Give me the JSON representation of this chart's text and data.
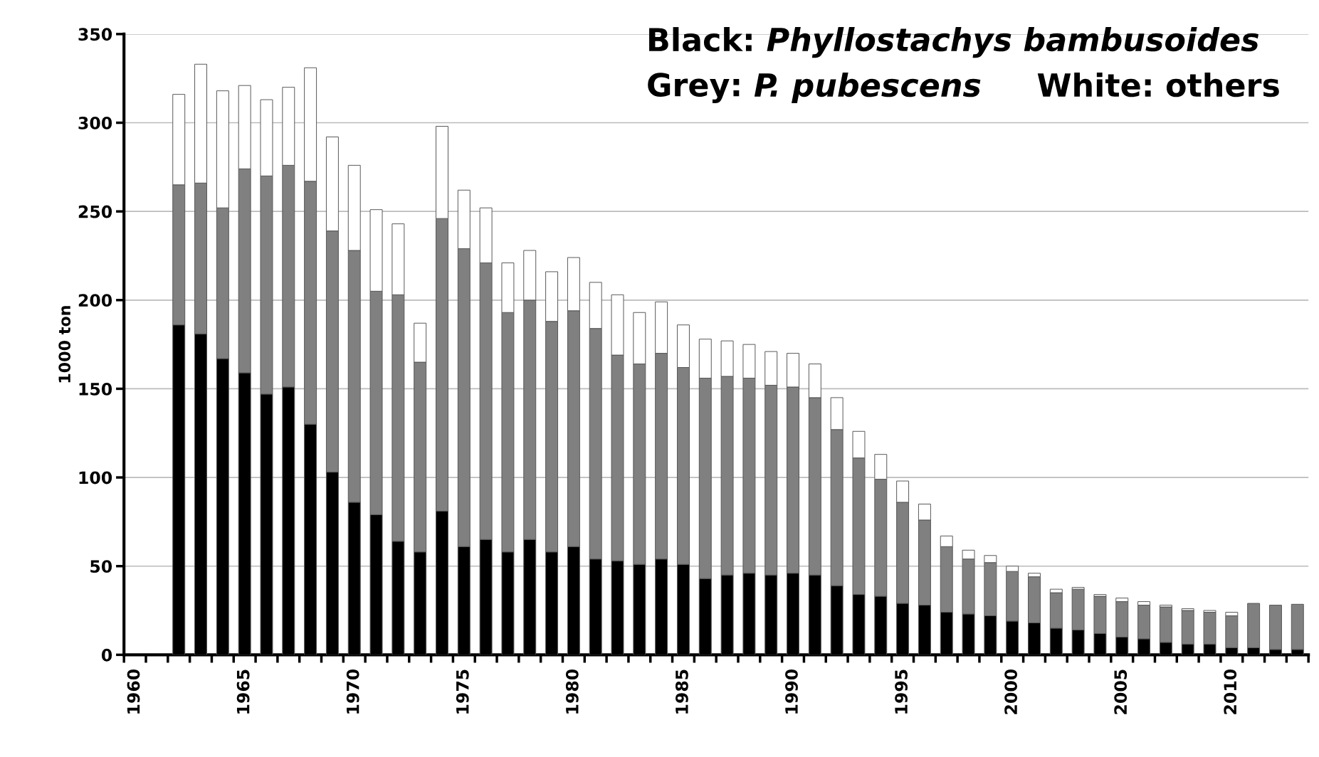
{
  "chart_data": {
    "type": "bar",
    "stacked": true,
    "ylabel": "1000 ton",
    "categories": [
      "1960",
      null,
      null,
      null,
      null,
      "1965",
      null,
      null,
      null,
      null,
      "1970",
      null,
      null,
      null,
      null,
      "1975",
      null,
      null,
      null,
      null,
      "1980",
      null,
      null,
      null,
      null,
      "1985",
      null,
      null,
      null,
      null,
      "1990",
      null,
      null,
      null,
      null,
      "1995",
      null,
      null,
      null,
      null,
      "2000",
      null,
      null,
      null,
      null,
      "2005",
      null,
      null,
      null,
      null,
      "2010",
      null,
      null,
      null
    ],
    "series": [
      {
        "color": "#000000",
        "values": [
          null,
          null,
          186,
          181,
          167,
          159,
          147,
          151,
          130,
          103,
          86,
          79,
          64,
          58,
          81,
          61,
          65,
          58,
          65,
          58,
          61,
          54,
          53,
          51,
          54,
          51,
          43,
          45,
          46,
          45,
          46,
          45,
          39,
          34,
          33,
          29,
          28,
          24,
          23,
          22,
          19,
          18,
          15,
          14,
          12,
          10,
          9,
          7,
          6,
          6,
          4,
          4,
          3,
          3
        ]
      },
      {
        "color": "#808080",
        "values": [
          null,
          null,
          79,
          85,
          85,
          115,
          123,
          125,
          137,
          136,
          142,
          126,
          139,
          107,
          165,
          168,
          156,
          135,
          135,
          130,
          133,
          130,
          116,
          113,
          116,
          111,
          113,
          112,
          110,
          107,
          105,
          100,
          88,
          77,
          66,
          57,
          48,
          37,
          31,
          30,
          28,
          26,
          20,
          23,
          21,
          20,
          19,
          20,
          19,
          18,
          18,
          25,
          25,
          25.5
        ]
      },
      {
        "color": "#ffffff",
        "values": [
          null,
          null,
          51,
          67,
          66,
          47,
          43,
          44,
          64,
          53,
          48,
          46,
          40,
          22,
          52,
          33,
          31,
          28,
          28,
          28,
          30,
          26,
          34,
          29,
          29,
          24,
          22,
          20,
          19,
          19,
          19,
          19,
          18,
          15,
          14,
          12,
          9,
          6,
          5,
          4,
          3,
          2,
          2,
          1,
          1,
          2,
          2,
          1,
          1,
          1,
          2,
          null,
          null,
          null
        ]
      }
    ],
    "ylim": [
      0,
      350
    ],
    "yticks": [
      0,
      50,
      100,
      150,
      200,
      250,
      300,
      350
    ],
    "grid": "y",
    "annotations": [
      "Black: ",
      "Phyllostachys bambusoides",
      "Grey: ",
      "P. pubescens",
      "     White: others"
    ]
  }
}
